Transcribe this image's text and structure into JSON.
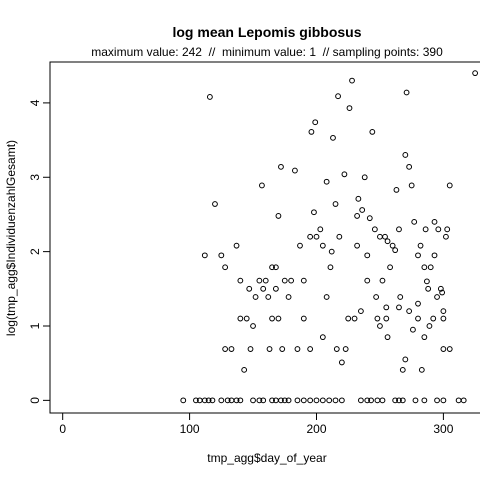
{
  "chart_data": {
    "type": "scatter",
    "title": "log mean Lepomis gibbosus",
    "subtitle": "maximum value: 242  //  minimum value: 1  // sampling points: 390",
    "xlabel": "tmp_agg$day_of_year",
    "ylabel": "log(tmp_agg$IndividuenzahlGesamt)",
    "xlim": [
      -10,
      332
    ],
    "ylim": [
      -0.17,
      4.55
    ],
    "x_ticks": [
      0,
      100,
      200,
      300
    ],
    "x_tick_labels": [
      "0",
      "100",
      "200",
      "300"
    ],
    "y_ticks": [
      0,
      1,
      2,
      3,
      4
    ],
    "y_tick_labels": [
      "0",
      "1",
      "2",
      "3",
      "4"
    ],
    "grid": false,
    "legend": "none",
    "marker": "open-circle",
    "points": [
      [
        95,
        0
      ],
      [
        105,
        0
      ],
      [
        108,
        0
      ],
      [
        112,
        0
      ],
      [
        115,
        0
      ],
      [
        118,
        0
      ],
      [
        125,
        0
      ],
      [
        130,
        0
      ],
      [
        133,
        0
      ],
      [
        137,
        0
      ],
      [
        140,
        0
      ],
      [
        150,
        0
      ],
      [
        155,
        0
      ],
      [
        158,
        0
      ],
      [
        165,
        0
      ],
      [
        168,
        0
      ],
      [
        172,
        0
      ],
      [
        175,
        0
      ],
      [
        178,
        0
      ],
      [
        185,
        0
      ],
      [
        190,
        0
      ],
      [
        195,
        0
      ],
      [
        200,
        0
      ],
      [
        205,
        0
      ],
      [
        210,
        0
      ],
      [
        215,
        0
      ],
      [
        220,
        0
      ],
      [
        235,
        0
      ],
      [
        240,
        0
      ],
      [
        243,
        0
      ],
      [
        248,
        0
      ],
      [
        252,
        0
      ],
      [
        262,
        0
      ],
      [
        265,
        0
      ],
      [
        268,
        0
      ],
      [
        278,
        0
      ],
      [
        285,
        0
      ],
      [
        295,
        0
      ],
      [
        300,
        0
      ],
      [
        312,
        0
      ],
      [
        316,
        0
      ],
      [
        112,
        1.95
      ],
      [
        116,
        4.08
      ],
      [
        120,
        2.64
      ],
      [
        125,
        1.95
      ],
      [
        128,
        1.79
      ],
      [
        128,
        0.69
      ],
      [
        133,
        0.69
      ],
      [
        137,
        2.08
      ],
      [
        140,
        1.61
      ],
      [
        140,
        1.1
      ],
      [
        143,
        0.41
      ],
      [
        145,
        1.1
      ],
      [
        147,
        1.5
      ],
      [
        148,
        0.69
      ],
      [
        150,
        1.0
      ],
      [
        152,
        1.39
      ],
      [
        155,
        1.61
      ],
      [
        157,
        2.89
      ],
      [
        158,
        1.5
      ],
      [
        160,
        1.61
      ],
      [
        162,
        1.39
      ],
      [
        163,
        0.69
      ],
      [
        165,
        1.79
      ],
      [
        165,
        1.1
      ],
      [
        168,
        1.79
      ],
      [
        168,
        1.5
      ],
      [
        170,
        1.1
      ],
      [
        170,
        2.48
      ],
      [
        172,
        3.14
      ],
      [
        173,
        0.69
      ],
      [
        175,
        1.61
      ],
      [
        178,
        1.39
      ],
      [
        180,
        1.61
      ],
      [
        183,
        3.09
      ],
      [
        185,
        0.69
      ],
      [
        187,
        2.08
      ],
      [
        190,
        1.1
      ],
      [
        190,
        1.61
      ],
      [
        195,
        0.69
      ],
      [
        195,
        2.2
      ],
      [
        196,
        3.61
      ],
      [
        198,
        2.53
      ],
      [
        199,
        3.74
      ],
      [
        200,
        2.2
      ],
      [
        203,
        2.3
      ],
      [
        205,
        2.08
      ],
      [
        205,
        0.85
      ],
      [
        208,
        1.39
      ],
      [
        208,
        2.94
      ],
      [
        211,
        1.79
      ],
      [
        212,
        2.0
      ],
      [
        213,
        3.53
      ],
      [
        215,
        2.64
      ],
      [
        216,
        0.69
      ],
      [
        217,
        4.09
      ],
      [
        218,
        2.2
      ],
      [
        220,
        0.51
      ],
      [
        222,
        3.04
      ],
      [
        223,
        0.69
      ],
      [
        225,
        1.1
      ],
      [
        226,
        3.93
      ],
      [
        228,
        4.3
      ],
      [
        230,
        1.1
      ],
      [
        232,
        2.48
      ],
      [
        232,
        2.08
      ],
      [
        233,
        2.71
      ],
      [
        235,
        1.2
      ],
      [
        236,
        2.56
      ],
      [
        238,
        3.0
      ],
      [
        240,
        1.95
      ],
      [
        240,
        1.61
      ],
      [
        242,
        2.45
      ],
      [
        244,
        3.61
      ],
      [
        246,
        2.3
      ],
      [
        247,
        1.39
      ],
      [
        248,
        1.1
      ],
      [
        250,
        1.0
      ],
      [
        250,
        2.2
      ],
      [
        252,
        1.61
      ],
      [
        254,
        2.2
      ],
      [
        255,
        1.1
      ],
      [
        255,
        1.25
      ],
      [
        256,
        0.85
      ],
      [
        256,
        2.14
      ],
      [
        258,
        1.79
      ],
      [
        260,
        2.08
      ],
      [
        262,
        2.02
      ],
      [
        263,
        2.83
      ],
      [
        265,
        2.3
      ],
      [
        265,
        1.25
      ],
      [
        266,
        1.39
      ],
      [
        268,
        0.41
      ],
      [
        270,
        0.55
      ],
      [
        270,
        3.3
      ],
      [
        271,
        4.14
      ],
      [
        273,
        1.2
      ],
      [
        273,
        3.14
      ],
      [
        275,
        2.89
      ],
      [
        276,
        0.95
      ],
      [
        277,
        2.4
      ],
      [
        280,
        1.95
      ],
      [
        280,
        1.1
      ],
      [
        280,
        1.3
      ],
      [
        282,
        2.08
      ],
      [
        283,
        0.41
      ],
      [
        285,
        0.85
      ],
      [
        285,
        1.79
      ],
      [
        286,
        2.3
      ],
      [
        287,
        1.6
      ],
      [
        288,
        1.5
      ],
      [
        289,
        1.0
      ],
      [
        290,
        1.79
      ],
      [
        292,
        1.1
      ],
      [
        293,
        1.95
      ],
      [
        293,
        2.4
      ],
      [
        295,
        1.39
      ],
      [
        296,
        2.3
      ],
      [
        298,
        1.5
      ],
      [
        299,
        1.45
      ],
      [
        300,
        1.2
      ],
      [
        300,
        1.1
      ],
      [
        300,
        0.69
      ],
      [
        302,
        2.2
      ],
      [
        303,
        2.3
      ],
      [
        305,
        0.69
      ],
      [
        305,
        2.89
      ],
      [
        325,
        4.4
      ]
    ]
  }
}
